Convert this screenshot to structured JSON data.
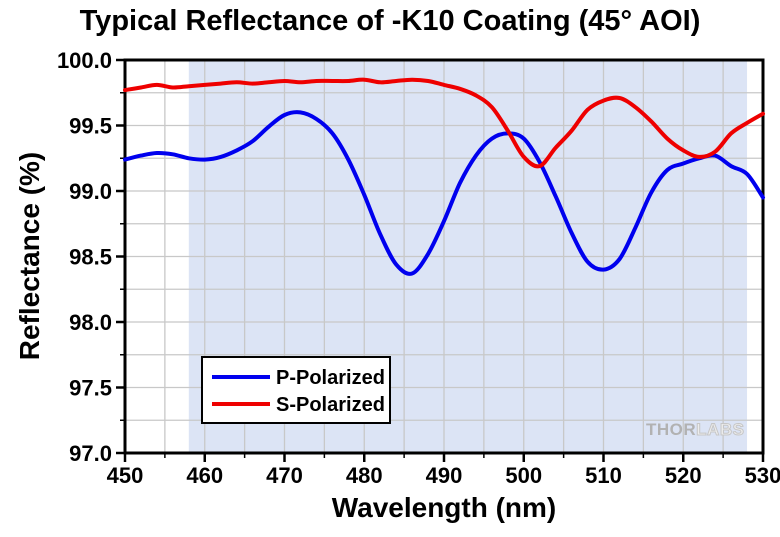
{
  "chart_data": {
    "type": "line",
    "title": "Typical Reflectance of -K10 Coating (45° AOI)",
    "xlabel": "Wavelength (nm)",
    "ylabel": "Reflectance (%)",
    "xlim": [
      450,
      530
    ],
    "ylim": [
      97.0,
      100.0
    ],
    "x_major_ticks": [
      450,
      460,
      470,
      480,
      490,
      500,
      510,
      520,
      530
    ],
    "x_minor_step": 5,
    "y_major_ticks": [
      97.0,
      97.5,
      98.0,
      98.5,
      99.0,
      99.5,
      100.0
    ],
    "y_minor_step": 0.25,
    "grid": true,
    "grid_color": "#c8c8c8",
    "shaded_band": {
      "x_from": 458,
      "x_to": 528,
      "color": "#dce4f5"
    },
    "legend": {
      "position": "lower-left",
      "entries": [
        "P-Polarized",
        "S-Polarized"
      ]
    },
    "series": [
      {
        "name": "P-Polarized",
        "color": "#0000ee",
        "x": [
          450,
          452,
          454,
          456,
          458,
          460,
          462,
          464,
          466,
          468,
          470,
          472,
          474,
          476,
          478,
          480,
          482,
          484,
          486,
          488,
          490,
          492,
          494,
          496,
          498,
          500,
          502,
          504,
          506,
          508,
          510,
          512,
          514,
          516,
          518,
          520,
          522,
          524,
          526,
          528,
          530
        ],
        "y": [
          99.24,
          99.27,
          99.29,
          99.28,
          99.25,
          99.24,
          99.26,
          99.31,
          99.38,
          99.49,
          99.58,
          99.6,
          99.55,
          99.44,
          99.24,
          98.97,
          98.67,
          98.44,
          98.37,
          98.52,
          98.77,
          99.06,
          99.27,
          99.4,
          99.44,
          99.4,
          99.22,
          98.96,
          98.68,
          98.46,
          98.4,
          98.48,
          98.72,
          98.99,
          99.16,
          99.21,
          99.25,
          99.27,
          99.19,
          99.13,
          98.95
        ]
      },
      {
        "name": "S-Polarized",
        "color": "#ee0000",
        "x": [
          450,
          452,
          454,
          456,
          458,
          460,
          462,
          464,
          466,
          468,
          470,
          472,
          474,
          476,
          478,
          480,
          482,
          484,
          486,
          488,
          490,
          492,
          494,
          496,
          498,
          500,
          502,
          504,
          506,
          508,
          510,
          512,
          514,
          516,
          518,
          520,
          522,
          524,
          526,
          528,
          530
        ],
        "y": [
          99.77,
          99.79,
          99.81,
          99.79,
          99.8,
          99.81,
          99.82,
          99.83,
          99.82,
          99.83,
          99.84,
          99.83,
          99.84,
          99.84,
          99.84,
          99.85,
          99.83,
          99.84,
          99.85,
          99.84,
          99.81,
          99.78,
          99.73,
          99.64,
          99.46,
          99.26,
          99.19,
          99.33,
          99.46,
          99.62,
          99.69,
          99.71,
          99.64,
          99.53,
          99.4,
          99.31,
          99.26,
          99.3,
          99.44,
          99.52,
          99.59
        ]
      }
    ],
    "watermark": {
      "bold": "THOR",
      "light": "LABS"
    }
  }
}
